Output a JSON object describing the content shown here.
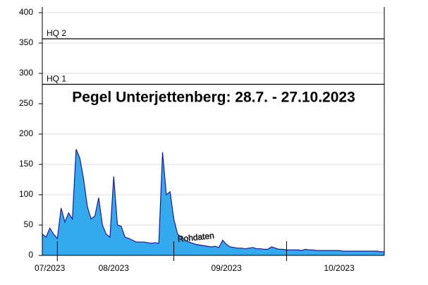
{
  "chart_data": {
    "type": "area",
    "title": "Pegel Unterjettenberg: 28.7. - 27.10.2023",
    "annotations": [
      "Rohdaten"
    ],
    "reference_lines": [
      {
        "label": "HQ 1",
        "value": 282
      },
      {
        "label": "HQ 2",
        "value": 357
      }
    ],
    "x": [
      0,
      1,
      2,
      3,
      4,
      5,
      6,
      7,
      8,
      9,
      10,
      11,
      12,
      13,
      14,
      15,
      16,
      17,
      18,
      19,
      20,
      21,
      22,
      23,
      24,
      25,
      26,
      27,
      28,
      29,
      30,
      31,
      32,
      33,
      34,
      35,
      36,
      37,
      38,
      39,
      40,
      41,
      42,
      43,
      44,
      45,
      46,
      47,
      48,
      49,
      50,
      51,
      52,
      53,
      54,
      55,
      56,
      57,
      58,
      59,
      60,
      61,
      62,
      63,
      64,
      65,
      66,
      67,
      68,
      69,
      70,
      71,
      72,
      73,
      74,
      75,
      76,
      77,
      78,
      79,
      80,
      81,
      82,
      83,
      84,
      85,
      86,
      87,
      88,
      89,
      90,
      91
    ],
    "series": [
      {
        "color": "#33aaee",
        "line_color": "#1a1aa0",
        "values": [
          35,
          30,
          45,
          35,
          28,
          78,
          55,
          70,
          60,
          175,
          160,
          125,
          80,
          60,
          65,
          95,
          50,
          35,
          30,
          130,
          50,
          48,
          30,
          28,
          25,
          22,
          22,
          22,
          21,
          20,
          21,
          20,
          170,
          100,
          105,
          60,
          35,
          30,
          25,
          22,
          20,
          18,
          17,
          16,
          15,
          14,
          15,
          13,
          25,
          18,
          14,
          13,
          12,
          12,
          11,
          12,
          13,
          11,
          11,
          10,
          10,
          14,
          12,
          10,
          10,
          9,
          9,
          9,
          9,
          8,
          10,
          9,
          9,
          8,
          8,
          8,
          8,
          8,
          8,
          8,
          7,
          7,
          7,
          7,
          7,
          7,
          7,
          7,
          7,
          7,
          6,
          6
        ]
      }
    ],
    "xlim": [
      0,
      91
    ],
    "xticks": [
      {
        "value": 2,
        "label": "07/2023"
      },
      {
        "value": 19,
        "label": "08/2023"
      },
      {
        "value": 49,
        "label": "09/2023"
      },
      {
        "value": 79,
        "label": "10/2023"
      }
    ],
    "month_boundaries": [
      4,
      35,
      65
    ],
    "ylim": [
      0,
      400
    ],
    "yticks": [
      0,
      50,
      100,
      150,
      200,
      250,
      300,
      350,
      400
    ],
    "grid": true
  }
}
